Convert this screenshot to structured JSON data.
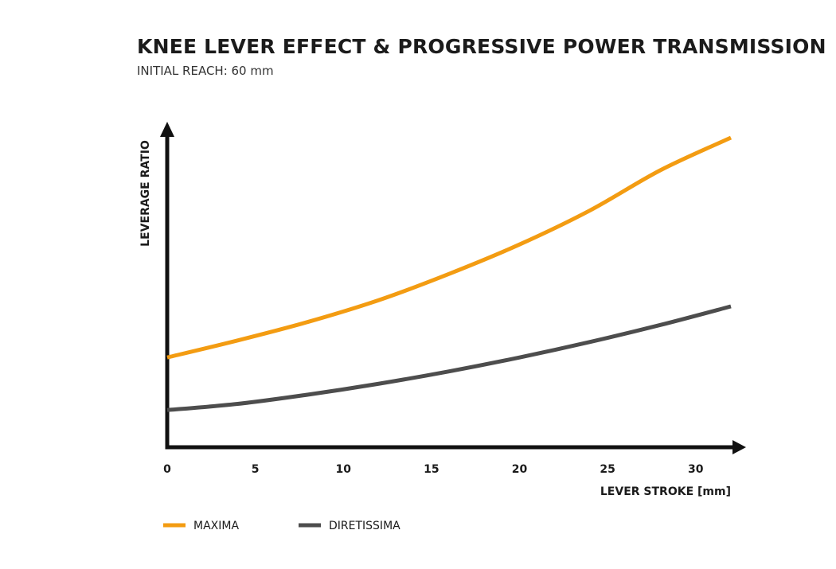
{
  "header": {
    "title": "KNEE LEVER EFFECT & PROGRESSIVE POWER TRANSMISSION",
    "subtitle": "INITIAL REACH: 60 mm"
  },
  "chart_data": {
    "type": "line",
    "title": "KNEE LEVER EFFECT & PROGRESSIVE POWER TRANSMISSION",
    "subtitle": "INITIAL REACH: 60 mm",
    "xlabel": "LEVER STROKE [mm]",
    "ylabel": "LEVERAGE RATIO",
    "xlim": [
      0,
      32
    ],
    "xticks": [
      0,
      5,
      10,
      15,
      20,
      25,
      30
    ],
    "yticks_shown": false,
    "grid": false,
    "legend_position": "bottom-left",
    "series": [
      {
        "name": "MAXIMA",
        "color": "#f39c12",
        "x": [
          0,
          4,
          8,
          12,
          16,
          20,
          24,
          28,
          32
        ],
        "y": [
          0.29,
          0.345,
          0.405,
          0.475,
          0.56,
          0.655,
          0.765,
          0.895,
          1.0
        ]
      },
      {
        "name": "DIRETISSIMA",
        "color": "#4d4d4d",
        "x": [
          0,
          4,
          8,
          12,
          16,
          20,
          24,
          28,
          32
        ],
        "y": [
          0.12,
          0.14,
          0.17,
          0.205,
          0.245,
          0.29,
          0.34,
          0.395,
          0.455
        ]
      }
    ]
  }
}
